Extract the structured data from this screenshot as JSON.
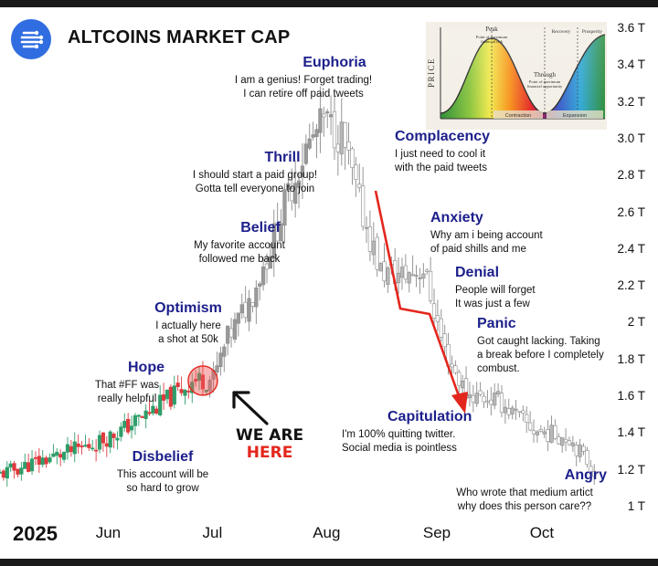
{
  "header": {
    "title": "ALTCOINS MARKET CAP"
  },
  "phases": [
    {
      "title": "Disbelief",
      "quote": "This account will be\nso hard to grow"
    },
    {
      "title": "Hope",
      "quote": "That #FF was\nreally helpful"
    },
    {
      "title": "Optimism",
      "quote": "I actually here\na shot at 50k"
    },
    {
      "title": "Belief",
      "quote": "My favorite account\nfollowed me back"
    },
    {
      "title": "Thrill",
      "quote": "I should start a paid group!\nGotta tell everyone to join"
    },
    {
      "title": "Euphoria",
      "quote": "I am a genius! Forget trading!\nI can retire off paid tweets"
    },
    {
      "title": "Complacency",
      "quote": "I just need to cool it\nwith the paid tweets"
    },
    {
      "title": "Anxiety",
      "quote": "Why am i being account\nof paid shills and me"
    },
    {
      "title": "Denial",
      "quote": "People will forget\nIt was just a few"
    },
    {
      "title": "Panic",
      "quote": "Got caught lacking. Taking\na break before I completely\ncombust."
    },
    {
      "title": "Capitulation",
      "quote": "I'm 100% quitting twitter.\nSocial media is pointless"
    },
    {
      "title": "Angry",
      "quote": "Who wrote that medium artict\nwhy does this person care??"
    }
  ],
  "marker": {
    "line1": "WE ARE",
    "line2": "HERE"
  },
  "inset": {
    "ylabel": "PRICE",
    "peak": "Peak",
    "peak_note": "Point of maximum\nfinancial risk",
    "through": "Through",
    "through_note": "Point of maximum\nfinancial opportunity",
    "recovery": "Recovery",
    "prosperity": "Prosperity",
    "contraction": "Contraction",
    "expansion": "Expansion"
  },
  "colors": {
    "accent": "#2f6de1",
    "phase_title": "#1c1f8a",
    "bull": "#2f9e6a",
    "bear": "#e03a3e",
    "gray_candle": "#b8b8b8",
    "arrow": "#e3261d"
  },
  "chart_data": {
    "type": "candlestick",
    "title": "ALTCOINS MARKET CAP",
    "year": "2025",
    "x_ticks": [
      "Jun",
      "Jul",
      "Aug",
      "Sep",
      "Oct"
    ],
    "y_ticks": [
      "1 T",
      "1.2 T",
      "1.4 T",
      "1.6 T",
      "1.8 T",
      "2 T",
      "2.2 T",
      "2.4 T",
      "2.6 T",
      "2.8 T",
      "3.0 T",
      "3.2 T",
      "3.4 T",
      "3.6 T"
    ],
    "ylim": [
      1.0,
      3.6
    ],
    "y_unit": "T",
    "grid": false,
    "series": [
      {
        "name": "",
        "highlighted": true,
        "close_points": [
          {
            "date": "2025-05-01",
            "value": 1.18
          },
          {
            "date": "2025-05-10",
            "value": 1.24
          },
          {
            "date": "2025-05-20",
            "value": 1.3
          },
          {
            "date": "2025-05-28",
            "value": 1.35
          },
          {
            "date": "2025-06-05",
            "value": 1.43
          },
          {
            "date": "2025-06-12",
            "value": 1.52
          },
          {
            "date": "2025-06-18",
            "value": 1.6
          },
          {
            "date": "2025-06-24",
            "value": 1.69
          },
          {
            "date": "2025-06-30",
            "value": 1.7
          },
          {
            "date": "2025-07-04",
            "value": 1.92
          },
          {
            "date": "2025-07-10",
            "value": 2.12
          },
          {
            "date": "2025-07-15",
            "value": 2.36
          },
          {
            "date": "2025-07-21",
            "value": 2.7
          },
          {
            "date": "2025-07-26",
            "value": 2.95
          },
          {
            "date": "2025-07-31",
            "value": 3.1
          },
          {
            "date": "2025-08-05",
            "value": 3.02
          },
          {
            "date": "2025-08-10",
            "value": 2.65
          },
          {
            "date": "2025-08-16",
            "value": 2.28
          },
          {
            "date": "2025-08-22",
            "value": 2.26
          },
          {
            "date": "2025-08-28",
            "value": 2.3
          },
          {
            "date": "2025-09-03",
            "value": 1.85
          },
          {
            "date": "2025-09-09",
            "value": 1.62
          },
          {
            "date": "2025-09-18",
            "value": 1.58
          },
          {
            "date": "2025-09-28",
            "value": 1.42
          },
          {
            "date": "2025-10-08",
            "value": 1.38
          },
          {
            "date": "2025-10-15",
            "value": 1.2
          }
        ]
      }
    ],
    "annotations": [
      "WE ARE HERE"
    ]
  }
}
